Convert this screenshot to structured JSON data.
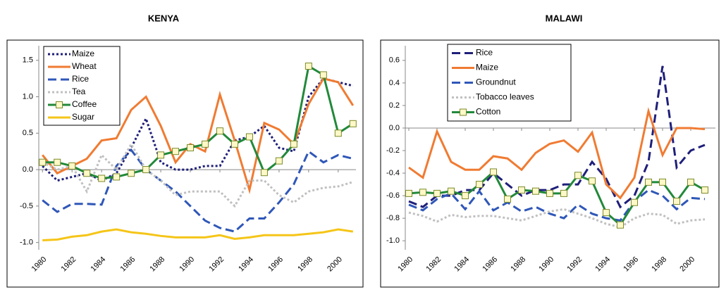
{
  "chart_data": [
    {
      "type": "line",
      "title": "KENYA",
      "x": [
        1980,
        1981,
        1982,
        1983,
        1984,
        1985,
        1986,
        1987,
        1988,
        1989,
        1990,
        1991,
        1992,
        1993,
        1994,
        1995,
        1996,
        1997,
        1998,
        1999,
        2000,
        2001
      ],
      "xlim": [
        1979.75,
        2001.2
      ],
      "xticks": [
        1980,
        1982,
        1984,
        1986,
        1988,
        1990,
        1992,
        1994,
        1996,
        1998,
        2000
      ],
      "ylim": [
        -1.1,
        1.7
      ],
      "yticks": [
        {
          "value": -1.0,
          "label": "-1.0"
        },
        -0.5,
        {
          "value": 0.0,
          "label": "0.0"
        },
        0.5,
        {
          "value": 1.0,
          "label": "1.0"
        },
        1.5
      ],
      "series": [
        {
          "name": "Maize",
          "color": "#1f1f7a",
          "dash": "dot",
          "values": [
            0.05,
            -0.15,
            -0.1,
            -0.05,
            -0.15,
            -0.05,
            0.3,
            0.7,
            0.1,
            0.0,
            0.0,
            0.05,
            0.05,
            0.4,
            0.45,
            0.6,
            0.3,
            0.25,
            1.0,
            1.25,
            1.2,
            1.15
          ]
        },
        {
          "name": "Wheat",
          "color": "#f07b32",
          "dash": "solid",
          "values": [
            0.2,
            -0.05,
            0.05,
            0.15,
            0.4,
            0.43,
            0.82,
            1.0,
            0.6,
            0.1,
            0.35,
            0.25,
            1.03,
            0.4,
            -0.28,
            0.64,
            0.55,
            0.35,
            0.9,
            1.25,
            1.2,
            0.88
          ]
        },
        {
          "name": "Rice",
          "color": "#2f57b8",
          "dash": "dash",
          "values": [
            -0.42,
            -0.58,
            -0.47,
            -0.47,
            -0.48,
            0.05,
            0.27,
            0.0,
            -0.15,
            -0.3,
            -0.5,
            -0.7,
            -0.8,
            -0.85,
            -0.67,
            -0.67,
            -0.45,
            -0.2,
            0.25,
            0.1,
            0.2,
            0.15
          ]
        },
        {
          "name": "Tea",
          "color": "#c0c0c0",
          "dash": "dot",
          "values": [
            0.1,
            0.0,
            0.05,
            -0.3,
            0.2,
            0.0,
            0.35,
            0.0,
            -0.15,
            -0.35,
            -0.3,
            -0.3,
            -0.3,
            -0.5,
            -0.15,
            -0.15,
            -0.35,
            -0.45,
            -0.3,
            -0.25,
            -0.23,
            -0.17
          ]
        },
        {
          "name": "Coffee",
          "color": "#22893a",
          "dash": "solid",
          "marker": "square",
          "values": [
            0.1,
            0.1,
            0.05,
            -0.05,
            -0.12,
            -0.1,
            -0.05,
            0.0,
            0.2,
            0.25,
            0.3,
            0.35,
            0.53,
            0.35,
            0.45,
            -0.04,
            0.12,
            0.35,
            1.42,
            1.3,
            0.5,
            0.63
          ]
        },
        {
          "name": "Sugar",
          "color": "#f5c518",
          "dash": "solid",
          "values": [
            -0.97,
            -0.96,
            -0.92,
            -0.9,
            -0.85,
            -0.82,
            -0.86,
            -0.88,
            -0.91,
            -0.93,
            -0.93,
            -0.93,
            -0.9,
            -0.95,
            -0.93,
            -0.9,
            -0.9,
            -0.9,
            -0.88,
            -0.86,
            -0.82,
            -0.85
          ]
        }
      ]
    },
    {
      "type": "line",
      "title": "MALAWI",
      "x": [
        1980,
        1981,
        1982,
        1983,
        1984,
        1985,
        1986,
        1987,
        1988,
        1989,
        1990,
        1991,
        1992,
        1993,
        1994,
        1995,
        1996,
        1997,
        1998,
        1999,
        2000,
        2001
      ],
      "xlim": [
        1979.75,
        2001.75
      ],
      "xticks": [
        1980,
        1982,
        1984,
        1986,
        1988,
        1990,
        1992,
        1994,
        1996,
        1998,
        2000
      ],
      "ylim": [
        -1.08,
        0.73
      ],
      "yticks": [
        {
          "value": -1.0,
          "label": "-1.0"
        },
        -0.8,
        -0.6,
        -0.4,
        -0.2,
        {
          "value": 0.0,
          "label": "0.0"
        },
        0.2,
        0.4,
        0.6
      ],
      "series": [
        {
          "name": "Rice",
          "color": "#1f1f7a",
          "dash": "dash",
          "values": [
            -0.65,
            -0.7,
            -0.6,
            -0.6,
            -0.55,
            -0.55,
            -0.4,
            -0.5,
            -0.6,
            -0.55,
            -0.55,
            -0.5,
            -0.5,
            -0.3,
            -0.45,
            -0.7,
            -0.6,
            -0.3,
            0.55,
            -0.35,
            -0.2,
            -0.15
          ]
        },
        {
          "name": "Maize",
          "color": "#f07b32",
          "dash": "solid",
          "values": [
            -0.35,
            -0.44,
            -0.03,
            -0.3,
            -0.37,
            -0.37,
            -0.25,
            -0.27,
            -0.37,
            -0.22,
            -0.14,
            -0.11,
            -0.21,
            -0.04,
            -0.5,
            -0.62,
            -0.44,
            0.15,
            -0.24,
            0.0,
            0.0,
            -0.01
          ]
        },
        {
          "name": "Groundnut",
          "color": "#2f57b8",
          "dash": "dash",
          "values": [
            -0.68,
            -0.73,
            -0.63,
            -0.58,
            -0.72,
            -0.56,
            -0.73,
            -0.66,
            -0.74,
            -0.7,
            -0.76,
            -0.8,
            -0.68,
            -0.76,
            -0.8,
            -0.82,
            -0.65,
            -0.55,
            -0.6,
            -0.72,
            -0.62,
            -0.63
          ]
        },
        {
          "name": "Tobacco leaves",
          "color": "#c0c0c0",
          "dash": "dot",
          "values": [
            -0.75,
            -0.78,
            -0.83,
            -0.77,
            -0.79,
            -0.78,
            -0.78,
            -0.8,
            -0.82,
            -0.78,
            -0.74,
            -0.72,
            -0.76,
            -0.8,
            -0.85,
            -0.88,
            -0.8,
            -0.76,
            -0.77,
            -0.85,
            -0.82,
            -0.81
          ]
        },
        {
          "name": "Cotton",
          "color": "#22893a",
          "dash": "solid",
          "marker": "square",
          "values": [
            -0.58,
            -0.57,
            -0.58,
            -0.56,
            -0.6,
            -0.5,
            -0.39,
            -0.63,
            -0.55,
            -0.56,
            -0.58,
            -0.58,
            -0.42,
            -0.47,
            -0.75,
            -0.86,
            -0.66,
            -0.48,
            -0.48,
            -0.65,
            -0.48,
            -0.55
          ]
        }
      ]
    }
  ]
}
